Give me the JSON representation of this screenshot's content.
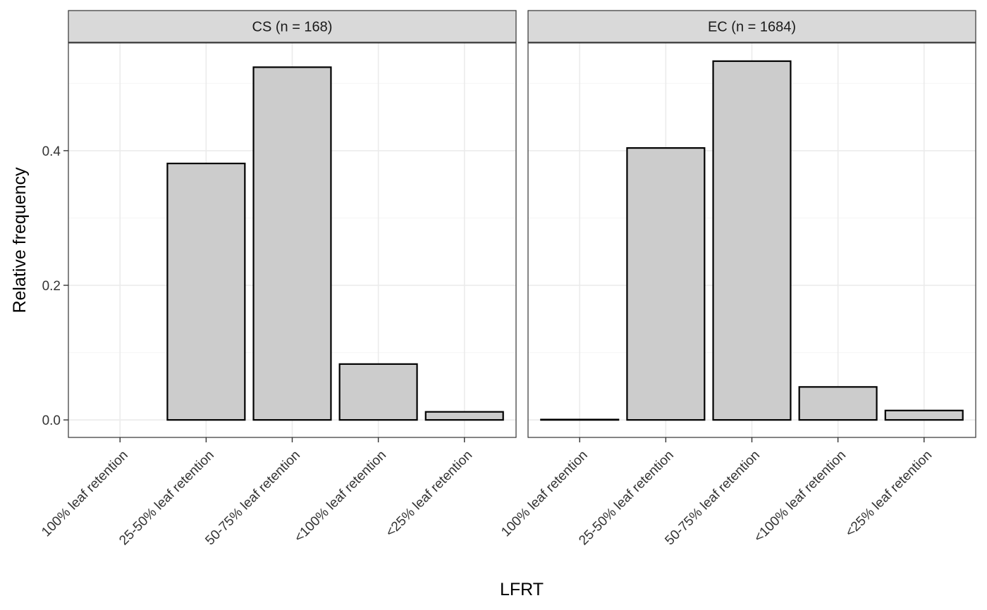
{
  "chart_data": [
    {
      "type": "bar",
      "facet": "CS (n = 168)",
      "categories": [
        "100% leaf retention",
        "25-50% leaf retention",
        "50-75% leaf retention",
        "<100% leaf retention",
        "<25% leaf retention"
      ],
      "values": [
        0.0,
        0.381,
        0.524,
        0.083,
        0.012
      ],
      "xlabel": "LFRT",
      "ylabel": "Relative frequency",
      "ylim": [
        -0.026,
        0.56
      ],
      "yticks": [
        0.0,
        0.2,
        0.4
      ],
      "ytick_labels": [
        "0.0",
        "0.2",
        "0.4"
      ],
      "grid": true,
      "bar_fill": "#cccccc",
      "bar_stroke": "#000000"
    },
    {
      "type": "bar",
      "facet": "EC (n = 1684)",
      "categories": [
        "100% leaf retention",
        "25-50% leaf retention",
        "50-75% leaf retention",
        "<100% leaf retention",
        "<25% leaf retention"
      ],
      "values": [
        0.0006,
        0.404,
        0.533,
        0.049,
        0.014
      ],
      "xlabel": "LFRT",
      "ylabel": "Relative frequency",
      "ylim": [
        -0.026,
        0.56
      ],
      "yticks": [
        0.0,
        0.2,
        0.4
      ],
      "ytick_labels": [
        "0.0",
        "0.2",
        "0.4"
      ],
      "grid": true,
      "bar_fill": "#cccccc",
      "bar_stroke": "#000000"
    }
  ],
  "axis_titles": {
    "x": "LFRT",
    "y": "Relative frequency"
  },
  "colors": {
    "strip_fill": "#d9d9d9",
    "grid_major": "#ebebeb",
    "grid_minor": "#f5f5f5",
    "panel_border": "#333333"
  }
}
